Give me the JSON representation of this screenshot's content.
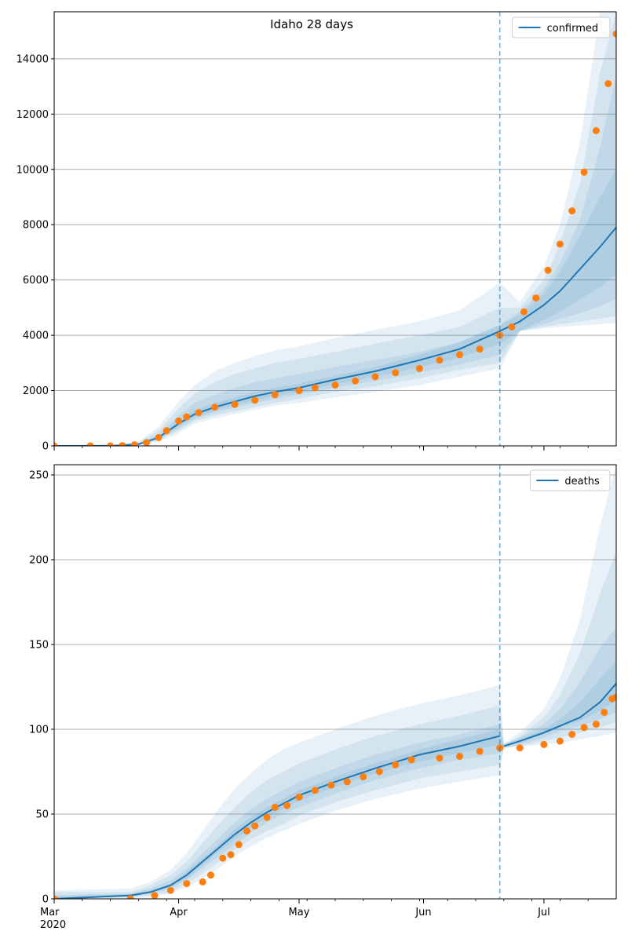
{
  "colors": {
    "model": "#1f77b4",
    "observed": "#ff7f0e",
    "band": "#1f77b4",
    "grid": "#b0b0b0",
    "cutoff": "#1f77b4"
  },
  "chart_data": [
    {
      "id": "confirmed",
      "type": "line",
      "title": "Idaho 28 days",
      "legend": [
        "confirmed"
      ],
      "legend_position": "top-right",
      "grid": "y",
      "xlim": [
        "2020-03-01",
        "2020-07-19"
      ],
      "ylim": [
        0,
        15700
      ],
      "yticks": [
        0,
        2000,
        4000,
        6000,
        8000,
        10000,
        12000,
        14000
      ],
      "cutoff_date": "2020-06-20",
      "series": [
        {
          "name": "confirmed",
          "kind": "model-median",
          "x": [
            "2020-03-01",
            "2020-03-16",
            "2020-03-22",
            "2020-03-27",
            "2020-04-01",
            "2020-04-05",
            "2020-04-10",
            "2020-04-15",
            "2020-04-20",
            "2020-04-25",
            "2020-05-01",
            "2020-05-10",
            "2020-05-20",
            "2020-05-31",
            "2020-06-10",
            "2020-06-20",
            "2020-06-25",
            "2020-07-01",
            "2020-07-05",
            "2020-07-10",
            "2020-07-15",
            "2020-07-19"
          ],
          "y": [
            0,
            5,
            60,
            300,
            800,
            1150,
            1400,
            1600,
            1800,
            1950,
            2100,
            2400,
            2700,
            3100,
            3500,
            4150,
            4500,
            5100,
            5600,
            6400,
            7200,
            7900
          ]
        },
        {
          "name": "",
          "kind": "observed",
          "x": [
            "2020-03-01",
            "2020-03-10",
            "2020-03-15",
            "2020-03-18",
            "2020-03-21",
            "2020-03-24",
            "2020-03-27",
            "2020-03-29",
            "2020-04-01",
            "2020-04-03",
            "2020-04-06",
            "2020-04-10",
            "2020-04-15",
            "2020-04-20",
            "2020-04-25",
            "2020-05-01",
            "2020-05-05",
            "2020-05-10",
            "2020-05-15",
            "2020-05-20",
            "2020-05-25",
            "2020-05-31",
            "2020-06-05",
            "2020-06-10",
            "2020-06-15",
            "2020-06-20",
            "2020-06-23",
            "2020-06-26",
            "2020-06-29",
            "2020-07-02",
            "2020-07-05",
            "2020-07-08",
            "2020-07-11",
            "2020-07-14",
            "2020-07-17",
            "2020-07-19"
          ],
          "y": [
            0,
            0,
            0,
            10,
            40,
            120,
            300,
            550,
            900,
            1050,
            1200,
            1400,
            1500,
            1650,
            1850,
            2000,
            2100,
            2200,
            2350,
            2500,
            2650,
            2800,
            3100,
            3300,
            3500,
            4000,
            4300,
            4850,
            5350,
            6350,
            7300,
            8500,
            9900,
            11400,
            13100,
            14900
          ]
        }
      ],
      "bands": {
        "x": [
          "2020-03-01",
          "2020-03-16",
          "2020-03-22",
          "2020-03-27",
          "2020-04-01",
          "2020-04-05",
          "2020-04-10",
          "2020-04-15",
          "2020-04-20",
          "2020-04-25",
          "2020-05-01",
          "2020-05-10",
          "2020-05-20",
          "2020-05-31",
          "2020-06-10",
          "2020-06-20",
          "2020-06-25",
          "2020-07-01",
          "2020-07-05",
          "2020-07-10",
          "2020-07-15",
          "2020-07-19"
        ],
        "levels": [
          {
            "lo": [
              0,
              0,
              20,
              150,
              450,
              800,
              1000,
              1150,
              1300,
              1450,
              1550,
              1750,
              1950,
              2200,
              2500,
              2800,
              4150,
              4250,
              4300,
              4350,
              4400,
              4450
            ],
            "hi": [
              0,
              20,
              150,
              700,
              1600,
              2200,
              2700,
              3000,
              3250,
              3450,
              3600,
              3900,
              4200,
              4500,
              4900,
              5900,
              5200,
              6500,
              8000,
              11000,
              15700,
              15700
            ]
          },
          {
            "lo": [
              0,
              0,
              30,
              200,
              550,
              900,
              1100,
              1250,
              1400,
              1550,
              1700,
              1950,
              2150,
              2450,
              2750,
              3000,
              4150,
              4300,
              4400,
              4500,
              4600,
              4700
            ],
            "hi": [
              0,
              15,
              120,
              550,
              1350,
              1900,
              2300,
              2600,
              2800,
              3000,
              3150,
              3400,
              3700,
              4000,
              4300,
              5000,
              5000,
              6000,
              7300,
              9500,
              13500,
              15700
            ]
          },
          {
            "lo": [
              0,
              0,
              40,
              230,
              620,
              980,
              1200,
              1380,
              1550,
              1700,
              1850,
              2100,
              2350,
              2650,
              2950,
              3300,
              4150,
              4400,
              4600,
              4800,
              5050,
              5300
            ],
            "hi": [
              0,
              10,
              90,
              420,
              1100,
              1550,
              1850,
              2100,
              2300,
              2450,
              2600,
              2850,
              3100,
              3400,
              3750,
              4400,
              4850,
              5700,
              6600,
              8200,
              10800,
              13400
            ]
          },
          {
            "lo": [
              0,
              2,
              50,
              260,
              700,
              1050,
              1280,
              1470,
              1650,
              1800,
              1950,
              2230,
              2500,
              2850,
              3200,
              3700,
              4150,
              4550,
              4850,
              5300,
              5750,
              6200
            ],
            "hi": [
              0,
              8,
              75,
              350,
              920,
              1300,
              1550,
              1750,
              1950,
              2100,
              2250,
              2550,
              2850,
              3300,
              3750,
              4350,
              4750,
              5500,
              6300,
              7600,
              9000,
              10000
            ]
          }
        ]
      }
    },
    {
      "id": "deaths",
      "type": "line",
      "title": "",
      "legend": [
        "deaths"
      ],
      "legend_position": "top-right",
      "grid": "y",
      "xlim": [
        "2020-03-01",
        "2020-07-19"
      ],
      "ylim": [
        0,
        256
      ],
      "yticks": [
        0,
        50,
        100,
        150,
        200,
        250
      ],
      "xtick_labels": [
        "Mar\n2020",
        "Apr",
        "May",
        "Jun",
        "Jul"
      ],
      "xticks": [
        "2020-03-01",
        "2020-04-01",
        "2020-05-01",
        "2020-06-01",
        "2020-07-01"
      ],
      "cutoff_date": "2020-06-20",
      "series": [
        {
          "name": "deaths",
          "kind": "model-median",
          "x": [
            "2020-03-01",
            "2020-03-20",
            "2020-03-25",
            "2020-03-30",
            "2020-04-03",
            "2020-04-07",
            "2020-04-11",
            "2020-04-15",
            "2020-04-19",
            "2020-04-23",
            "2020-04-27",
            "2020-05-01",
            "2020-05-10",
            "2020-05-20",
            "2020-05-31",
            "2020-06-10",
            "2020-06-20",
            "2020-06-21",
            "2020-06-25",
            "2020-07-01",
            "2020-07-05",
            "2020-07-10",
            "2020-07-15",
            "2020-07-19"
          ],
          "y": [
            0,
            2,
            4,
            8,
            14,
            22,
            30,
            38,
            45,
            51,
            56,
            61,
            69,
            77,
            85,
            90,
            96,
            90,
            93,
            98,
            102,
            107,
            116,
            127
          ]
        },
        {
          "name": "",
          "kind": "observed",
          "x": [
            "2020-03-01",
            "2020-03-20",
            "2020-03-26",
            "2020-03-30",
            "2020-04-03",
            "2020-04-07",
            "2020-04-09",
            "2020-04-12",
            "2020-04-14",
            "2020-04-16",
            "2020-04-18",
            "2020-04-20",
            "2020-04-23",
            "2020-04-25",
            "2020-04-28",
            "2020-05-01",
            "2020-05-05",
            "2020-05-09",
            "2020-05-13",
            "2020-05-17",
            "2020-05-21",
            "2020-05-25",
            "2020-05-29",
            "2020-06-05",
            "2020-06-10",
            "2020-06-15",
            "2020-06-20",
            "2020-06-25",
            "2020-07-01",
            "2020-07-05",
            "2020-07-08",
            "2020-07-11",
            "2020-07-14",
            "2020-07-16",
            "2020-07-18",
            "2020-07-19"
          ],
          "y": [
            0,
            0,
            2,
            5,
            9,
            10,
            14,
            24,
            26,
            32,
            40,
            43,
            48,
            54,
            55,
            60,
            64,
            67,
            69,
            72,
            75,
            79,
            82,
            83,
            84,
            87,
            89,
            89,
            91,
            93,
            97,
            101,
            103,
            110,
            118,
            119
          ]
        }
      ],
      "bands": {
        "x": [
          "2020-03-01",
          "2020-03-20",
          "2020-03-25",
          "2020-03-30",
          "2020-04-03",
          "2020-04-07",
          "2020-04-11",
          "2020-04-15",
          "2020-04-19",
          "2020-04-23",
          "2020-04-27",
          "2020-05-01",
          "2020-05-10",
          "2020-05-20",
          "2020-05-31",
          "2020-06-10",
          "2020-06-20",
          "2020-06-21",
          "2020-06-25",
          "2020-07-01",
          "2020-07-05",
          "2020-07-10",
          "2020-07-15",
          "2020-07-19"
        ],
        "levels": [
          {
            "lo": [
              0,
              0,
              1,
              3,
              7,
              12,
              18,
              25,
              31,
              36,
              40,
              44,
              52,
              59,
              65,
              69,
              73,
              89,
              90,
              91,
              92,
              94,
              96,
              98
            ],
            "hi": [
              5,
              6,
              10,
              17,
              27,
              40,
              53,
              65,
              74,
              82,
              88,
              92,
              100,
              108,
              115,
              120,
              126,
              92,
              98,
              112,
              130,
              165,
              220,
              256
            ]
          },
          {
            "lo": [
              0,
              1,
              2,
              4,
              9,
              15,
              22,
              29,
              35,
              40,
              44,
              49,
              57,
              64,
              71,
              75,
              79,
              89,
              90,
              93,
              95,
              98,
              101,
              104
            ],
            "hi": [
              4,
              4,
              8,
              14,
              22,
              33,
              44,
              54,
              63,
              70,
              75,
              80,
              88,
              96,
              103,
              108,
              114,
              91,
              96,
              107,
              120,
              145,
              180,
              205
            ]
          },
          {
            "lo": [
              0,
              1,
              3,
              6,
              11,
              18,
              25,
              32,
              39,
              45,
              50,
              54,
              62,
              70,
              77,
              82,
              86,
              89,
              91,
              95,
              99,
              102,
              106,
              110
            ],
            "hi": [
              2,
              3,
              6,
              11,
              18,
              27,
              36,
              45,
              53,
              59,
              64,
              69,
              77,
              85,
              92,
              97,
              103,
              91,
              95,
              103,
              112,
              128,
              148,
              160
            ]
          },
          {
            "lo": [
              0,
              2,
              4,
              7,
              12,
              20,
              28,
              35,
              42,
              48,
              53,
              58,
              66,
              74,
              81,
              86,
              91,
              90,
              92,
              97,
              101,
              105,
              111,
              117
            ],
            "hi": [
              1,
              3,
              5,
              9,
              16,
              24,
              32,
              41,
              48,
              54,
              59,
              64,
              72,
              80,
              88,
              94,
              100,
              91,
              94,
              100,
              106,
              116,
              130,
              140
            ]
          }
        ]
      }
    }
  ]
}
